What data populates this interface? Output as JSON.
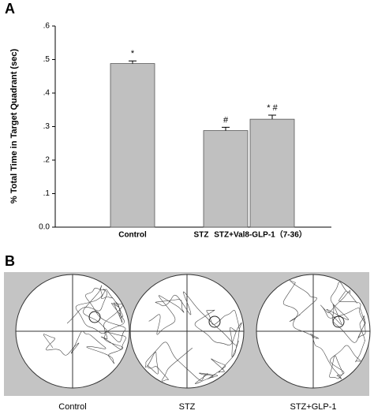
{
  "panel_labels": [
    "A",
    "B"
  ],
  "chart_data": {
    "type": "bar",
    "y_label": "% Total Time in Target Quadrant (sec)",
    "categories": [
      "Control",
      "STZ",
      "STZ+Val8-GLP-1（7-36）"
    ],
    "values": [
      0.488,
      0.288,
      0.322
    ],
    "errors": [
      0.008,
      0.01,
      0.012
    ],
    "annotations": [
      "*",
      "#",
      "* #"
    ],
    "color": "#c0c0c0",
    "ylim": [
      0,
      0.6
    ],
    "yticks": [
      {
        "value": 0,
        "label": "0.0"
      },
      {
        "value": 0.1,
        "label": ".1"
      },
      {
        "value": 0.2,
        "label": ".2"
      },
      {
        "value": 0.3,
        "label": ".3"
      },
      {
        "value": 0.4,
        "label": ".4"
      },
      {
        "value": 0.5,
        "label": ".5"
      },
      {
        "value": 0.6,
        "label": ".6"
      }
    ]
  },
  "panel_b": {
    "labels": [
      "Control",
      "STZ",
      "STZ+GLP-1"
    ]
  }
}
